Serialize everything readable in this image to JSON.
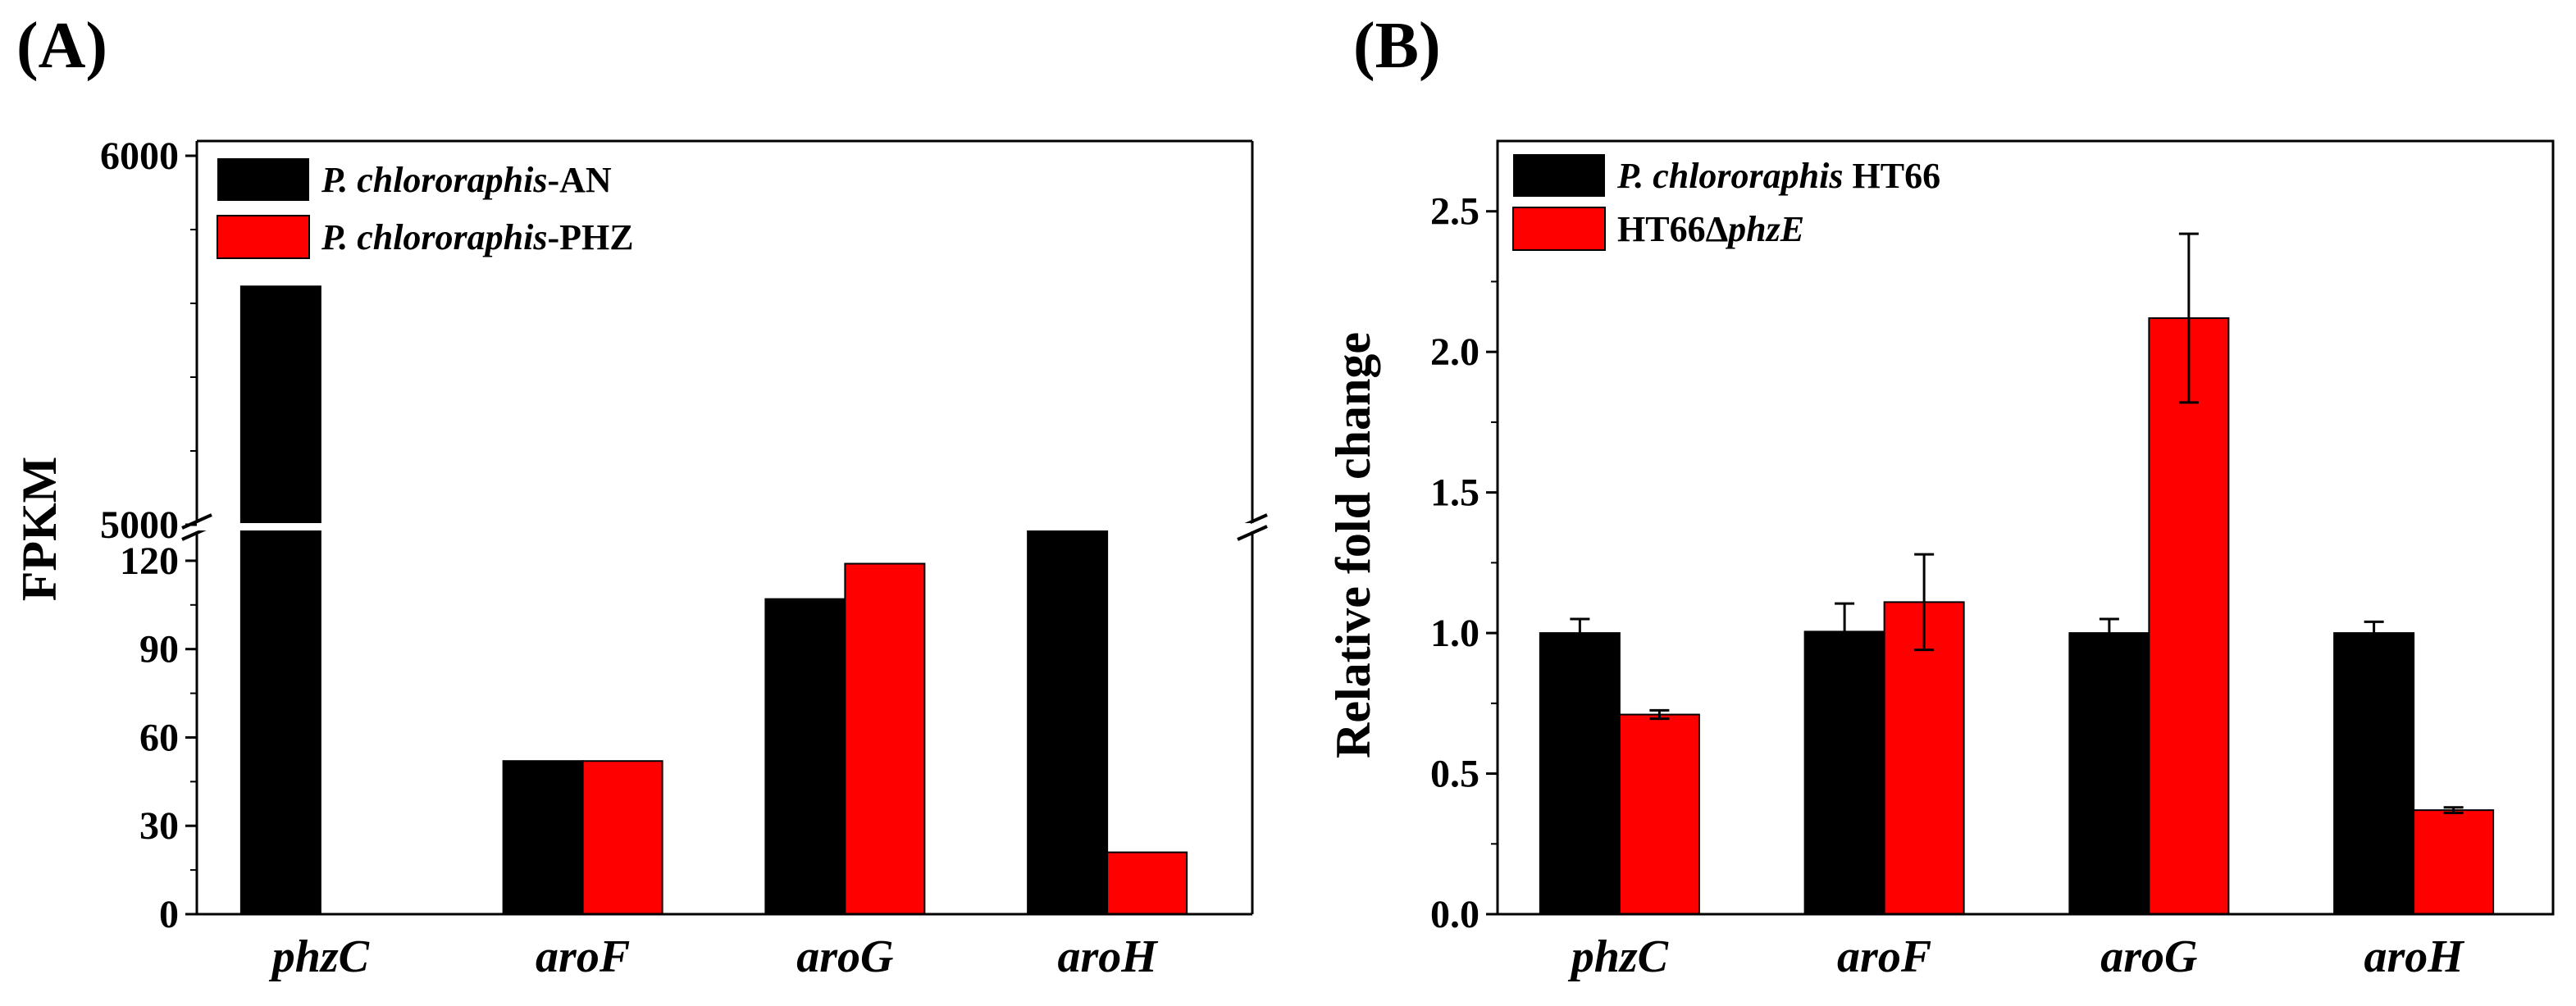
{
  "figure": {
    "panel_a_label": "(A)",
    "panel_b_label": "(B)"
  },
  "chart_data": [
    {
      "type": "bar",
      "panel": "(A)",
      "ylabel": "FPKM",
      "xlabel": "",
      "categories": [
        "phzC",
        "aroF",
        "aroG",
        "aroH"
      ],
      "series": [
        {
          "name": "P. chlororaphis-AN",
          "color": "#000000",
          "values": [
            5590,
            52,
            107,
            130
          ]
        },
        {
          "name": "P. chlororaphis-PHZ",
          "color": "#ff0000",
          "values": [
            0,
            52,
            119,
            21
          ]
        }
      ],
      "axis_break": {
        "lower_range": [
          0,
          130
        ],
        "upper_range": [
          4990,
          6000
        ]
      },
      "lower_yticks": [
        "0",
        "30",
        "60",
        "90",
        "120"
      ],
      "upper_yticks": [
        "5000",
        "6000"
      ],
      "legend": {
        "position": "top-left",
        "entries": [
          {
            "italic": "P. chlororaphis",
            "plain": "-AN",
            "color": "#000000"
          },
          {
            "italic": "P. chlororaphis",
            "plain": "-PHZ",
            "color": "#ff0000"
          }
        ]
      }
    },
    {
      "type": "bar",
      "panel": "(B)",
      "ylabel": "Relative fold change",
      "xlabel": "",
      "categories": [
        "phzC",
        "aroF",
        "aroG",
        "aroH"
      ],
      "ylim": [
        0,
        2.75
      ],
      "yticks": [
        "0.0",
        "0.5",
        "1.0",
        "1.5",
        "2.0",
        "2.5"
      ],
      "series": [
        {
          "name": "P. chlororaphis HT66",
          "color": "#000000",
          "values": [
            1.0,
            1.005,
            1.0,
            1.0
          ],
          "errors": [
            0.05,
            0.1,
            0.05,
            0.04
          ]
        },
        {
          "name": "HT66ΔphzE",
          "color": "#ff0000",
          "values": [
            0.71,
            1.11,
            2.12,
            0.37
          ],
          "errors": [
            0.015,
            0.17,
            0.3,
            0.01
          ]
        }
      ],
      "legend": {
        "position": "top-left",
        "entries": [
          {
            "italic": "P. chlororaphis",
            "plain": " HT66",
            "color": "#000000"
          },
          {
            "plain": "HT66Δ",
            "italic": "phzE",
            "color": "#ff0000"
          }
        ]
      }
    }
  ]
}
